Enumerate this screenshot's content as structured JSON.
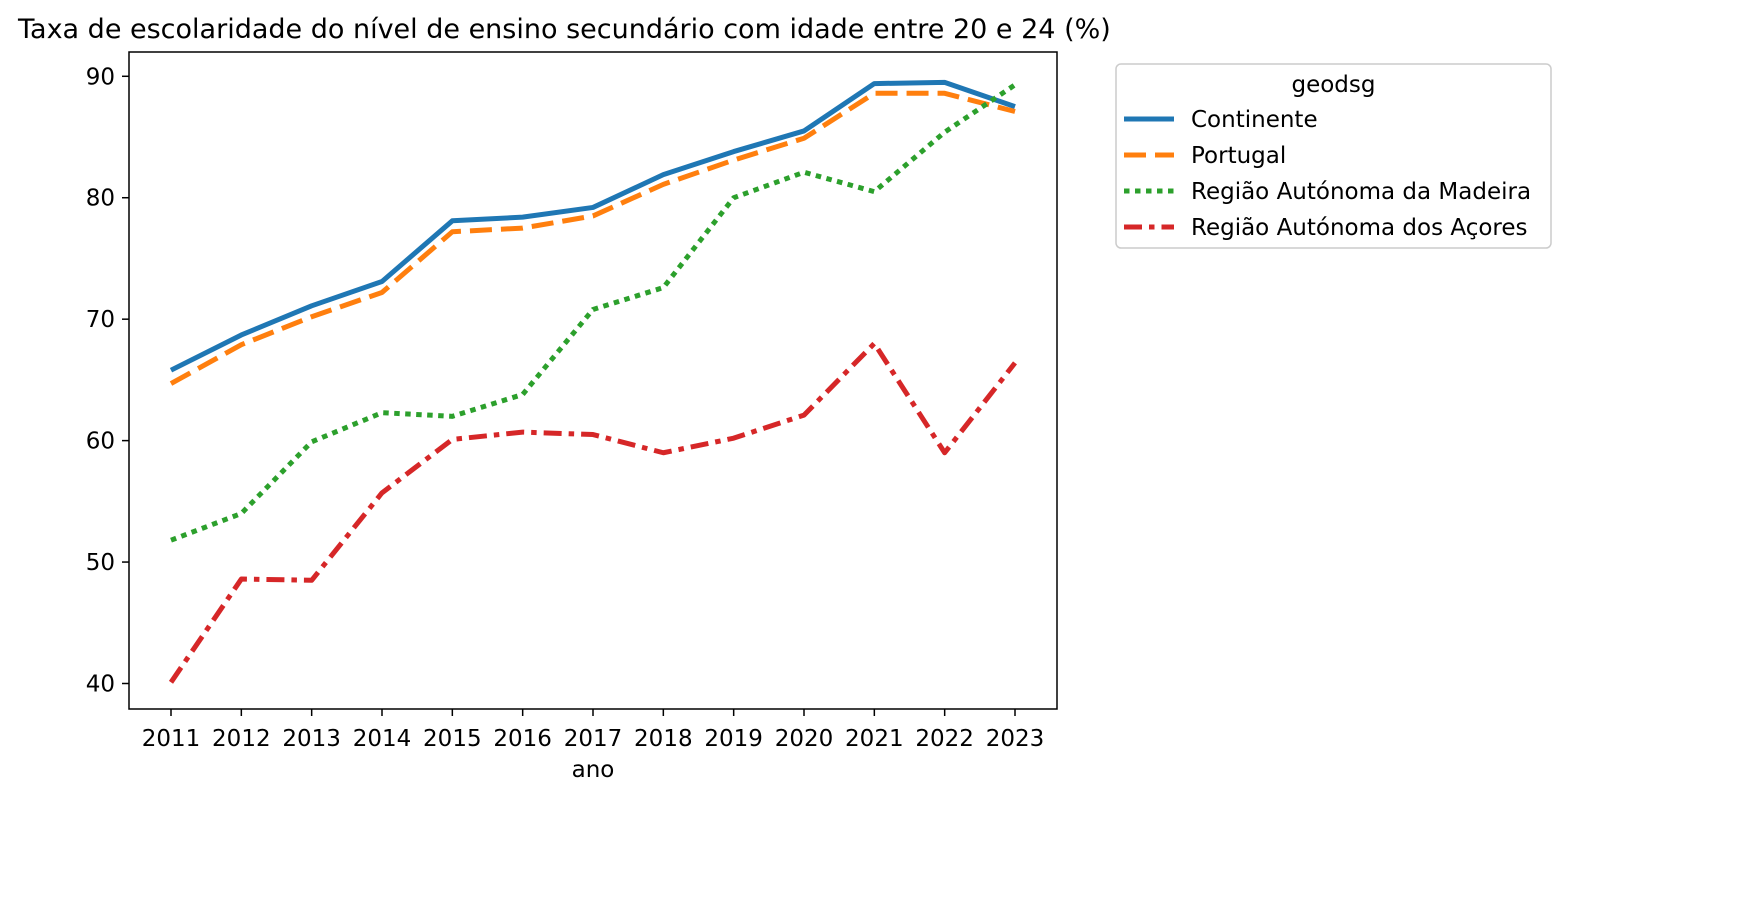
{
  "chart_data": {
    "type": "line",
    "title": "Taxa de escolaridade do nível de ensino secundário com idade entre 20 e 24 (%)",
    "xlabel": "ano",
    "ylabel": "",
    "x": [
      2011,
      2012,
      2013,
      2014,
      2015,
      2016,
      2017,
      2018,
      2019,
      2020,
      2021,
      2022,
      2023
    ],
    "x_tick_labels": [
      "2011",
      "2012",
      "2013",
      "2014",
      "2015",
      "2016",
      "2017",
      "2018",
      "2019",
      "2020",
      "2021",
      "2022",
      "2023"
    ],
    "ylim": [
      37.9,
      92.0
    ],
    "y_ticks": [
      40,
      50,
      60,
      70,
      80,
      90
    ],
    "y_tick_labels": [
      "40",
      "50",
      "60",
      "70",
      "80",
      "90"
    ],
    "grid": false,
    "legend": {
      "title": "geodsg",
      "position": "outside-top-right"
    },
    "series": [
      {
        "name": "Continente",
        "color": "#1f77b4",
        "style": "solid",
        "values": [
          65.8,
          68.7,
          71.1,
          73.1,
          78.1,
          78.4,
          79.2,
          81.9,
          83.8,
          85.5,
          89.4,
          89.5,
          87.5
        ]
      },
      {
        "name": "Portugal",
        "color": "#ff7f0e",
        "style": "dashed",
        "values": [
          64.7,
          67.9,
          70.2,
          72.2,
          77.2,
          77.5,
          78.5,
          81.1,
          83.1,
          84.9,
          88.6,
          88.6,
          87.1
        ]
      },
      {
        "name": "Região Autónoma da Madeira",
        "color": "#2ca02c",
        "style": "dotted",
        "values": [
          51.8,
          54.0,
          59.9,
          62.3,
          62.0,
          63.8,
          70.8,
          72.6,
          80.0,
          82.1,
          80.5,
          85.4,
          89.3
        ]
      },
      {
        "name": "Região Autónoma dos Açores",
        "color": "#d62728",
        "style": "dashdot",
        "values": [
          40.1,
          48.6,
          48.5,
          55.7,
          60.1,
          60.7,
          60.5,
          59.0,
          60.2,
          62.1,
          68.0,
          59.0,
          66.4
        ]
      }
    ]
  }
}
